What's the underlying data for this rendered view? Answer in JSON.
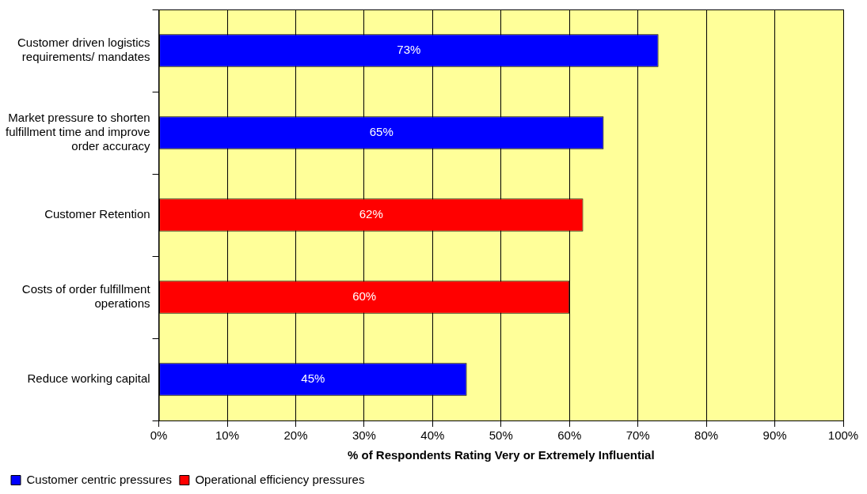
{
  "chart_data": {
    "type": "bar",
    "orientation": "horizontal",
    "xlabel": "% of Respondents Rating Very or Extremely Influential",
    "categories": [
      "Customer driven logistics requirements/ mandates",
      "Market pressure to shorten fulfillment time and improve order accuracy",
      "Customer Retention",
      "Costs of order fulfillment operations",
      "Reduce working capital"
    ],
    "series": [
      {
        "name": "Customer centric pressures",
        "color": "#0000ff",
        "values": [
          73,
          65,
          null,
          null,
          45
        ]
      },
      {
        "name": "Operational efficiency pressures",
        "color": "#ff0000",
        "values": [
          null,
          null,
          62,
          60,
          null
        ]
      }
    ],
    "xlim": [
      0,
      100
    ],
    "xticks": [
      {
        "value": 0,
        "label": "0%"
      },
      {
        "value": 10,
        "label": "10%"
      },
      {
        "value": 20,
        "label": "20%"
      },
      {
        "value": 30,
        "label": "30%"
      },
      {
        "value": 40,
        "label": "40%"
      },
      {
        "value": 50,
        "label": "50%"
      },
      {
        "value": 60,
        "label": "60%"
      },
      {
        "value": 70,
        "label": "70%"
      },
      {
        "value": 80,
        "label": "80%"
      },
      {
        "value": 90,
        "label": "90%"
      },
      {
        "value": 100,
        "label": "100%"
      }
    ],
    "value_labels": [
      "73%",
      "65%",
      "62%",
      "60%",
      "45%"
    ],
    "grid": "x",
    "legend": "bottom left"
  }
}
